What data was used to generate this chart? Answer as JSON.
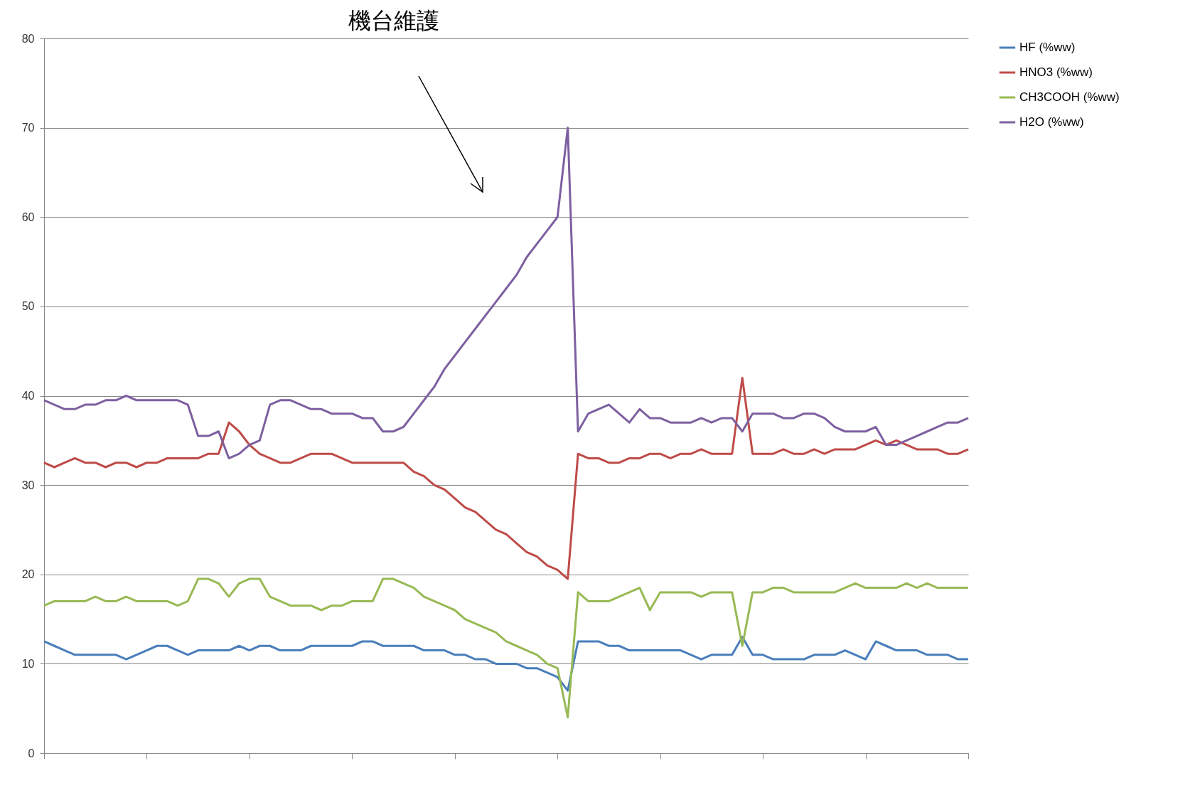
{
  "chart_data": {
    "type": "line",
    "annotations": [
      "機台維護"
    ],
    "categories": [
      null,
      null,
      null,
      null,
      null,
      null,
      null,
      null,
      null,
      null,
      null,
      null,
      null,
      null,
      null,
      null,
      null,
      null,
      null,
      null,
      null,
      null,
      null,
      null,
      null,
      null,
      null,
      null,
      null,
      null,
      null,
      null,
      null,
      null,
      null,
      null,
      null,
      null,
      null,
      null,
      null,
      null,
      null,
      null,
      null,
      null,
      null,
      null,
      null,
      null,
      null,
      null,
      null,
      null,
      null,
      null,
      null,
      null,
      null,
      null,
      null,
      null,
      null,
      null,
      null,
      null,
      null,
      null,
      null,
      null,
      null,
      null,
      null,
      null,
      null,
      null,
      null,
      null,
      null,
      null,
      null,
      null,
      null,
      null,
      null,
      null,
      null,
      null,
      null,
      null,
      null
    ],
    "series": [
      {
        "name": "HF (%ww)",
        "color": "#4a7ebb",
        "values": [
          12.5,
          12,
          11.5,
          11,
          11,
          11,
          11,
          11,
          10.5,
          11,
          11.5,
          12,
          12,
          11.5,
          11,
          11.5,
          11.5,
          11.5,
          11.5,
          12,
          11.5,
          12,
          12,
          11.5,
          11.5,
          11.5,
          12,
          12,
          12,
          12,
          12,
          12.5,
          12.5,
          12,
          12,
          12,
          12,
          11.5,
          11.5,
          11.5,
          11,
          11,
          10.5,
          10.5,
          10,
          10,
          10,
          9.5,
          9.5,
          9,
          8.5,
          7,
          12.5,
          12.5,
          12.5,
          12,
          12,
          11.5,
          11.5,
          11.5,
          11.5,
          11.5,
          11.5,
          11,
          10.5,
          11,
          11,
          11,
          13,
          11,
          11,
          10.5,
          10.5,
          10.5,
          10.5,
          11,
          11,
          11,
          11.5,
          11,
          10.5,
          12.5,
          12,
          11.5,
          11.5,
          11.5,
          11,
          11,
          11,
          10.5,
          10.5
        ]
      },
      {
        "name": "HNO3 (%ww)",
        "color": "#be4b48",
        "values": [
          32.5,
          32,
          32.5,
          33,
          32.5,
          32.5,
          32,
          32.5,
          32.5,
          32,
          32.5,
          32.5,
          33,
          33,
          33,
          33,
          33.5,
          33.5,
          37,
          36,
          34.5,
          33.5,
          33,
          32.5,
          32.5,
          33,
          33.5,
          33.5,
          33.5,
          33,
          32.5,
          32.5,
          32.5,
          32.5,
          32.5,
          32.5,
          31.5,
          31,
          30,
          29.5,
          28.5,
          27.5,
          27,
          26,
          25,
          24.5,
          23.5,
          22.5,
          22,
          21,
          20.5,
          19.5,
          33.5,
          33,
          33,
          32.5,
          32.5,
          33,
          33,
          33.5,
          33.5,
          33,
          33.5,
          33.5,
          34,
          33.5,
          33.5,
          33.5,
          42,
          33.5,
          33.5,
          33.5,
          34,
          33.5,
          33.5,
          34,
          33.5,
          34,
          34,
          34,
          34.5,
          35,
          34.5,
          35,
          34.5,
          34,
          34,
          34,
          33.5,
          33.5,
          34
        ]
      },
      {
        "name": "CH3COOH (%ww)",
        "color": "#98b954",
        "values": [
          16.5,
          17,
          17,
          17,
          17,
          17.5,
          17,
          17,
          17.5,
          17,
          17,
          17,
          17,
          16.5,
          17,
          19.5,
          19.5,
          19,
          17.5,
          19,
          19.5,
          19.5,
          17.5,
          17,
          16.5,
          16.5,
          16.5,
          16,
          16.5,
          16.5,
          17,
          17,
          17,
          19.5,
          19.5,
          19,
          18.5,
          17.5,
          17,
          16.5,
          16,
          15,
          14.5,
          14,
          13.5,
          12.5,
          12,
          11.5,
          11,
          10,
          9.5,
          4,
          18,
          17,
          17,
          17,
          17.5,
          18,
          18.5,
          16,
          18,
          18,
          18,
          18,
          17.5,
          18,
          18,
          18,
          12,
          18,
          18,
          18.5,
          18.5,
          18,
          18,
          18,
          18,
          18,
          18.5,
          19,
          18.5,
          18.5,
          18.5,
          18.5,
          19,
          18.5,
          19,
          18.5,
          18.5,
          18.5,
          18.5
        ]
      },
      {
        "name": "H2O (%ww)",
        "color": "#7d60a0",
        "values": [
          39.5,
          39,
          38.5,
          38.5,
          39,
          39,
          39.5,
          39.5,
          40,
          39.5,
          39.5,
          39.5,
          39.5,
          39.5,
          39,
          35.5,
          35.5,
          36,
          33,
          33.5,
          34.5,
          35,
          39,
          39.5,
          39.5,
          39,
          38.5,
          38.5,
          38,
          38,
          38,
          37.5,
          37.5,
          36,
          36,
          36.5,
          38,
          39.5,
          41,
          43,
          44.5,
          46,
          47.5,
          49,
          50.5,
          52,
          53.5,
          55.5,
          57,
          58.5,
          60,
          70,
          36,
          38,
          38.5,
          39,
          38,
          37,
          38.5,
          37.5,
          37.5,
          37,
          37,
          37,
          37.5,
          37,
          37.5,
          37.5,
          36,
          38,
          38,
          38,
          37.5,
          37.5,
          38,
          38,
          37.5,
          36.5,
          36,
          36,
          36,
          36.5,
          34.5,
          34.5,
          35,
          35.5,
          36,
          36.5,
          37,
          37,
          37.5
        ]
      }
    ],
    "ylim": [
      0,
      80
    ],
    "yticks": [
      0,
      10,
      20,
      30,
      40,
      50,
      60,
      70,
      80
    ],
    "grid": "y",
    "legend": "right",
    "tick_labels": "y",
    "marker": "none",
    "line_style": "solid"
  }
}
